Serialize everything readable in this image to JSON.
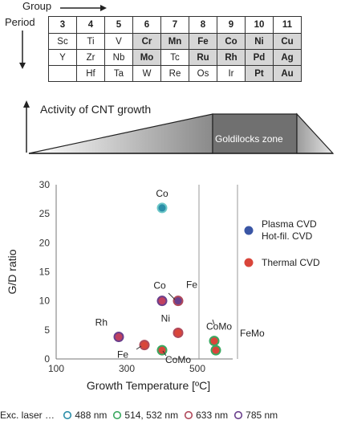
{
  "labels": {
    "group": "Group",
    "period": "Period",
    "activity": "Activity of CNT growth",
    "goldilocks": "Goldilocks zone"
  },
  "periodic_table": {
    "groups": [
      "3",
      "4",
      "5",
      "6",
      "7",
      "8",
      "9",
      "10",
      "11"
    ],
    "rows": [
      [
        {
          "s": "Sc",
          "h": false
        },
        {
          "s": "Ti",
          "h": false
        },
        {
          "s": "V",
          "h": false
        },
        {
          "s": "Cr",
          "h": true
        },
        {
          "s": "Mn",
          "h": true
        },
        {
          "s": "Fe",
          "h": true
        },
        {
          "s": "Co",
          "h": true
        },
        {
          "s": "Ni",
          "h": true
        },
        {
          "s": "Cu",
          "h": true
        }
      ],
      [
        {
          "s": "Y",
          "h": false
        },
        {
          "s": "Zr",
          "h": false
        },
        {
          "s": "Nb",
          "h": false
        },
        {
          "s": "Mo",
          "h": true
        },
        {
          "s": "Tc",
          "h": false
        },
        {
          "s": "Ru",
          "h": true
        },
        {
          "s": "Rh",
          "h": true
        },
        {
          "s": "Pd",
          "h": true
        },
        {
          "s": "Ag",
          "h": true
        }
      ],
      [
        {
          "s": "",
          "h": false
        },
        {
          "s": "Hf",
          "h": false
        },
        {
          "s": "Ta",
          "h": false
        },
        {
          "s": "W",
          "h": false
        },
        {
          "s": "Re",
          "h": false
        },
        {
          "s": "Os",
          "h": false
        },
        {
          "s": "Ir",
          "h": false
        },
        {
          "s": "Pt",
          "h": true
        },
        {
          "s": "Au",
          "h": true
        }
      ]
    ]
  },
  "legend": {
    "plasma": "Plasma CVD",
    "hotfil": "Hot-fil. CVD",
    "thermal": "Thermal CVD",
    "exc_prefix": "Exc. laser …",
    "lasers": [
      {
        "label": "488 nm",
        "color": "#2b8ea8"
      },
      {
        "label": "514, 532 nm",
        "color": "#3aa860"
      },
      {
        "label": "633 nm",
        "color": "#b0485a"
      },
      {
        "label": "785 nm",
        "color": "#6a3f8c"
      }
    ]
  },
  "colors": {
    "plasma_blue": "#3a56a5",
    "thermal_red": "#d9453a",
    "grid": "#999999"
  },
  "chart_data": {
    "type": "scatter",
    "xlabel": "Growth Temperature [ºC]",
    "ylabel": "G/D ratio",
    "xlim": [
      100,
      600
    ],
    "ylim": [
      0,
      30
    ],
    "xticks": [
      "100",
      "300",
      "500"
    ],
    "xtick_values": [
      100,
      300,
      500
    ],
    "yticks": [
      "0",
      "5",
      "10",
      "15",
      "20",
      "25",
      "30"
    ],
    "ytick_values": [
      0,
      5,
      10,
      15,
      20,
      25,
      30
    ],
    "vgrid": [
      300,
      500
    ],
    "points": [
      {
        "label": "Co",
        "x": 400,
        "y": 26,
        "fill": "#2b8ea8",
        "ring": "#6cc7c8"
      },
      {
        "label": "Co",
        "x": 400,
        "y": 10,
        "fill": "#c04060",
        "ring": "#6a3f8c"
      },
      {
        "label": "Fe",
        "x": 450,
        "y": 10,
        "fill": "#6a3f8c",
        "ring": "#b0485a"
      },
      {
        "label": "Ni",
        "x": 450,
        "y": 4.5,
        "fill": "#d9453a",
        "ring": "#b0485a"
      },
      {
        "label": "Rh",
        "x": 275,
        "y": 3.8,
        "fill": "#c04060",
        "ring": "#6a3f8c"
      },
      {
        "label": "Fe",
        "x": 350,
        "y": 2.4,
        "fill": "#d9453a",
        "ring": "#b0485a"
      },
      {
        "label": "CoMo",
        "x": 395,
        "y": 1.5,
        "fill": "#d9453a",
        "ring": "#3aa860"
      },
      {
        "label": "CoMo",
        "x": 550,
        "y": 3.1,
        "fill": "#d9453a",
        "ring": "#3aa860"
      },
      {
        "label": "FeMo",
        "x": 555,
        "y": 1.5,
        "fill": "#d9453a",
        "ring": "#3aa860"
      }
    ]
  }
}
